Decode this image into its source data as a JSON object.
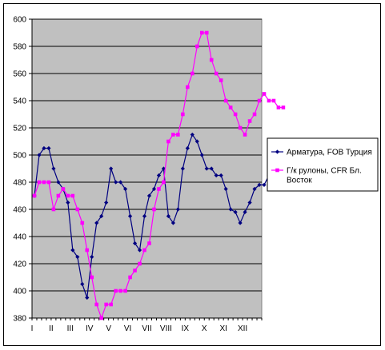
{
  "chart_data": {
    "type": "line",
    "title": "",
    "xlabel": "",
    "ylabel": "",
    "ylim": [
      380,
      600
    ],
    "y_ticks": [
      380,
      400,
      420,
      440,
      460,
      480,
      500,
      520,
      540,
      560,
      580,
      600
    ],
    "x_tick_labels": [
      "I",
      "II",
      "III",
      "IV",
      "V",
      "VI",
      "VII",
      "VIII",
      "IX",
      "X",
      "XI",
      "XII"
    ],
    "points_per_month": 4,
    "grid": "horizontal",
    "plot_background": "#c0c0c0",
    "legend_position": "right",
    "series": [
      {
        "name": "Арматура, FOB Турция",
        "color": "#000080",
        "marker": "diamond",
        "values": [
          470,
          500,
          505,
          505,
          490,
          480,
          475,
          465,
          430,
          425,
          405,
          395,
          425,
          450,
          455,
          465,
          490,
          480,
          480,
          475,
          455,
          435,
          430,
          455,
          470,
          475,
          485,
          490,
          455,
          450,
          460,
          490,
          505,
          515,
          510,
          500,
          490,
          490,
          485,
          485,
          475,
          460,
          458,
          450,
          458,
          465,
          475,
          478,
          478,
          485,
          485,
          487
        ]
      },
      {
        "name": "Г/к рулоны, CFR Бл. Восток",
        "color": "#ff00ff",
        "marker": "square",
        "values": [
          470,
          480,
          480,
          480,
          460,
          470,
          475,
          470,
          470,
          460,
          450,
          430,
          410,
          390,
          380,
          390,
          390,
          400,
          400,
          400,
          410,
          415,
          420,
          430,
          435,
          460,
          475,
          480,
          510,
          515,
          515,
          530,
          550,
          560,
          580,
          590,
          590,
          570,
          560,
          555,
          540,
          535,
          530,
          520,
          515,
          525,
          530,
          540,
          545,
          540,
          540,
          535,
          535
        ]
      }
    ]
  }
}
